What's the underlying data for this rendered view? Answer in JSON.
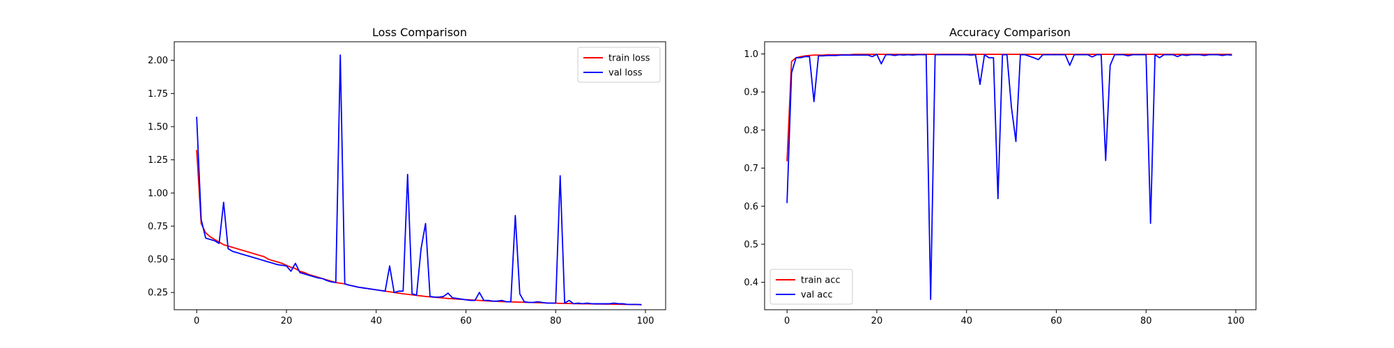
{
  "chart_data": [
    {
      "type": "line",
      "title": "Loss Comparison",
      "xlabel": "",
      "ylabel": "",
      "xlim": [
        -5,
        104.5
      ],
      "ylim": [
        0.12,
        2.14
      ],
      "xticks": [
        0,
        20,
        40,
        60,
        80,
        100
      ],
      "xtick_labels": [
        "0",
        "20",
        "40",
        "60",
        "80",
        "100"
      ],
      "yticks": [
        0.25,
        0.5,
        0.75,
        1.0,
        1.25,
        1.5,
        1.75,
        2.0
      ],
      "ytick_labels": [
        "0.25",
        "0.50",
        "0.75",
        "1.00",
        "1.25",
        "1.50",
        "1.75",
        "2.00"
      ],
      "grid": false,
      "legend_position": "upper right",
      "series": [
        {
          "name": "train loss",
          "color": "#ff0000",
          "values": [
            1.32,
            0.77,
            0.7,
            0.67,
            0.65,
            0.63,
            0.61,
            0.6,
            0.59,
            0.58,
            0.57,
            0.56,
            0.55,
            0.54,
            0.53,
            0.52,
            0.5,
            0.49,
            0.48,
            0.47,
            0.455,
            0.44,
            0.43,
            0.41,
            0.4,
            0.385,
            0.375,
            0.365,
            0.355,
            0.345,
            0.335,
            0.325,
            0.32,
            0.315,
            0.305,
            0.298,
            0.29,
            0.285,
            0.28,
            0.275,
            0.27,
            0.265,
            0.26,
            0.255,
            0.25,
            0.245,
            0.24,
            0.236,
            0.232,
            0.228,
            0.224,
            0.22,
            0.217,
            0.214,
            0.211,
            0.208,
            0.205,
            0.203,
            0.2,
            0.198,
            0.196,
            0.194,
            0.192,
            0.19,
            0.188,
            0.186,
            0.184,
            0.183,
            0.181,
            0.18,
            0.179,
            0.178,
            0.177,
            0.176,
            0.175,
            0.174,
            0.173,
            0.172,
            0.171,
            0.17,
            0.169,
            0.168,
            0.168,
            0.167,
            0.166,
            0.165,
            0.165,
            0.164,
            0.164,
            0.163,
            0.163,
            0.162,
            0.162,
            0.161,
            0.161,
            0.16,
            0.16,
            0.159,
            0.159,
            0.158
          ]
        },
        {
          "name": "val loss",
          "color": "#0000ff",
          "values": [
            1.57,
            0.8,
            0.66,
            0.65,
            0.64,
            0.62,
            0.93,
            0.58,
            0.56,
            0.55,
            0.54,
            0.53,
            0.52,
            0.51,
            0.5,
            0.49,
            0.48,
            0.47,
            0.46,
            0.455,
            0.45,
            0.41,
            0.47,
            0.4,
            0.39,
            0.38,
            0.37,
            0.36,
            0.355,
            0.34,
            0.33,
            0.325,
            2.04,
            0.315,
            0.305,
            0.298,
            0.29,
            0.285,
            0.28,
            0.275,
            0.27,
            0.265,
            0.26,
            0.45,
            0.25,
            0.26,
            0.26,
            1.14,
            0.24,
            0.23,
            0.58,
            0.77,
            0.22,
            0.215,
            0.215,
            0.22,
            0.245,
            0.21,
            0.205,
            0.2,
            0.195,
            0.19,
            0.19,
            0.25,
            0.19,
            0.19,
            0.185,
            0.185,
            0.19,
            0.18,
            0.18,
            0.83,
            0.24,
            0.18,
            0.175,
            0.175,
            0.18,
            0.175,
            0.17,
            0.17,
            0.17,
            1.13,
            0.17,
            0.19,
            0.165,
            0.17,
            0.165,
            0.17,
            0.165,
            0.165,
            0.165,
            0.165,
            0.165,
            0.17,
            0.165,
            0.165,
            0.16,
            0.16,
            0.16,
            0.158
          ]
        }
      ]
    },
    {
      "type": "line",
      "title": "Accuracy Comparison",
      "xlabel": "",
      "ylabel": "",
      "xlim": [
        -5,
        104.5
      ],
      "ylim": [
        0.328,
        1.032
      ],
      "xticks": [
        0,
        20,
        40,
        60,
        80,
        100
      ],
      "xtick_labels": [
        "0",
        "20",
        "40",
        "60",
        "80",
        "100"
      ],
      "yticks": [
        0.4,
        0.5,
        0.6,
        0.7,
        0.8,
        0.9,
        1.0
      ],
      "ytick_labels": [
        "0.4",
        "0.5",
        "0.6",
        "0.7",
        "0.8",
        "0.9",
        "1.0"
      ],
      "grid": false,
      "legend_position": "lower left",
      "series": [
        {
          "name": "train acc",
          "color": "#ff0000",
          "values": [
            0.72,
            0.98,
            0.99,
            0.993,
            0.995,
            0.996,
            0.997,
            0.997,
            0.997,
            0.998,
            0.998,
            0.998,
            0.998,
            0.998,
            0.998,
            0.999,
            0.999,
            0.999,
            0.999,
            0.999,
            0.999,
            0.999,
            0.999,
            0.999,
            0.999,
            0.999,
            0.999,
            0.999,
            0.999,
            0.999,
            0.999,
            0.999,
            0.999,
            0.999,
            0.999,
            0.999,
            0.999,
            0.999,
            0.999,
            0.999,
            0.999,
            0.999,
            0.999,
            0.999,
            0.999,
            0.999,
            0.999,
            0.999,
            0.999,
            0.999,
            0.999,
            0.999,
            0.999,
            0.999,
            0.999,
            0.999,
            0.999,
            0.999,
            0.999,
            0.999,
            0.999,
            0.999,
            0.999,
            0.999,
            0.999,
            0.999,
            0.999,
            0.999,
            0.999,
            0.999,
            0.999,
            0.999,
            0.999,
            0.999,
            0.999,
            0.999,
            0.999,
            0.999,
            0.999,
            0.999,
            0.999,
            0.999,
            0.999,
            0.999,
            0.999,
            0.999,
            0.999,
            0.999,
            0.999,
            0.999,
            0.999,
            0.999,
            0.999,
            0.999,
            0.999,
            0.999,
            0.999,
            0.999,
            0.999,
            0.999
          ]
        },
        {
          "name": "val acc",
          "color": "#0000ff",
          "values": [
            0.61,
            0.95,
            0.99,
            0.99,
            0.993,
            0.993,
            0.875,
            0.995,
            0.995,
            0.996,
            0.996,
            0.996,
            0.997,
            0.997,
            0.997,
            0.997,
            0.997,
            0.997,
            0.997,
            0.993,
            0.999,
            0.974,
            0.998,
            0.998,
            0.996,
            0.998,
            0.997,
            0.998,
            0.997,
            0.998,
            0.998,
            0.998,
            0.355,
            0.998,
            0.998,
            0.998,
            0.998,
            0.998,
            0.998,
            0.998,
            0.998,
            0.997,
            0.998,
            0.92,
            0.998,
            0.99,
            0.99,
            0.62,
            0.998,
            0.998,
            0.86,
            0.77,
            0.998,
            0.998,
            0.994,
            0.99,
            0.985,
            0.998,
            0.998,
            0.998,
            0.998,
            0.998,
            0.998,
            0.97,
            0.998,
            0.998,
            0.998,
            0.998,
            0.992,
            0.998,
            0.998,
            0.72,
            0.97,
            0.998,
            0.998,
            0.998,
            0.995,
            0.998,
            0.998,
            0.998,
            0.998,
            0.555,
            0.998,
            0.99,
            0.998,
            0.998,
            0.998,
            0.993,
            0.998,
            0.996,
            0.998,
            0.998,
            0.998,
            0.996,
            0.998,
            0.998,
            0.998,
            0.996,
            0.998,
            0.997
          ]
        }
      ]
    }
  ]
}
